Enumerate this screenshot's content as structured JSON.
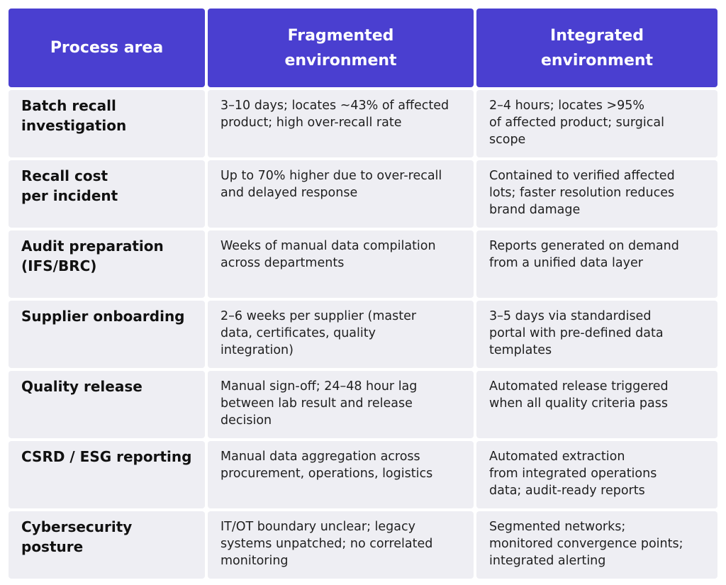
{
  "header": {
    "col1": "Process area",
    "col2": "Fragmented\nenvironment",
    "col3": "Integrated\nenvironment"
  },
  "colors": {
    "header_bg": "#4a3fd0",
    "header_text": "#ffffff",
    "cell_bg": "#eeeef3"
  },
  "rows": [
    {
      "area": "Batch recall\ninvestigation",
      "fragmented": "3–10 days; locates ~43% of affected\nproduct; high over-recall rate",
      "integrated": "2–4 hours; locates >95%\nof affected product; surgical\nscope"
    },
    {
      "area": "Recall cost\nper incident",
      "fragmented": "Up to 70% higher due to over-recall\nand delayed response",
      "integrated": "Contained to verified affected\nlots; faster resolution reduces\nbrand damage"
    },
    {
      "area": "Audit preparation\n(IFS/BRC)",
      "fragmented": "Weeks of manual data compilation\nacross departments",
      "integrated": "Reports generated on demand\nfrom a unified data layer"
    },
    {
      "area": "Supplier onboarding",
      "fragmented": "2–6 weeks per supplier (master\ndata, certificates, quality\nintegration)",
      "integrated": "3–5 days via standardised\nportal with pre-defined data\ntemplates"
    },
    {
      "area": "Quality release",
      "fragmented": "Manual sign-off; 24–48 hour lag\nbetween lab result and release\ndecision",
      "integrated": "Automated release triggered\nwhen all quality criteria pass"
    },
    {
      "area": "CSRD / ESG reporting",
      "fragmented": "Manual data aggregation across\nprocurement, operations, logistics",
      "integrated": "Automated extraction\nfrom integrated operations\ndata; audit-ready reports"
    },
    {
      "area": "Cybersecurity\nposture",
      "fragmented": "IT/OT boundary unclear; legacy\nsystems unpatched; no correlated\nmonitoring",
      "integrated": "Segmented networks;\nmonitored convergence points;\nintegrated alerting"
    }
  ]
}
